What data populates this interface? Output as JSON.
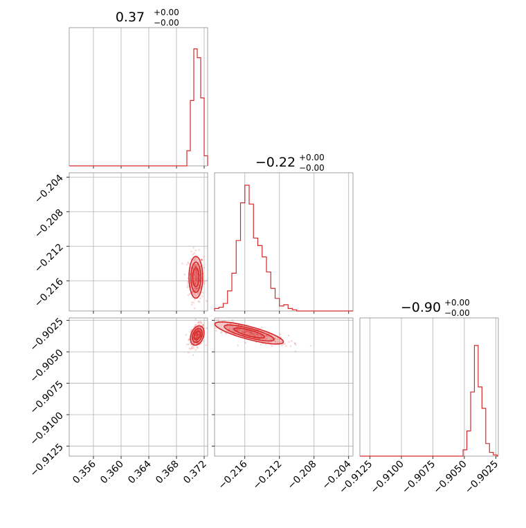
{
  "chart_data": {
    "type": "corner",
    "color": "#d62728",
    "parameters": [
      {
        "title": {
          "value": "0.37",
          "upper": "+0.00",
          "lower": "−0.00"
        }
      },
      {
        "title": {
          "value": "−0.22",
          "upper": "+0.00",
          "lower": "−0.00"
        }
      },
      {
        "title": {
          "value": "−0.90",
          "upper": "+0.00",
          "lower": "−0.00"
        }
      }
    ],
    "x_axes": [
      {
        "range": [
          0.3525,
          0.3725
        ],
        "ticks": [
          0.356,
          0.36,
          0.364,
          0.368,
          0.372
        ],
        "labels": [
          "0.356",
          "0.360",
          "0.364",
          "0.368",
          "0.372"
        ]
      },
      {
        "range": [
          -0.2195,
          -0.2035
        ],
        "ticks": [
          -0.216,
          -0.212,
          -0.208,
          -0.204
        ],
        "labels": [
          "−0.216",
          "−0.212",
          "−0.208",
          "−0.204"
        ]
      },
      {
        "range": [
          -0.9133,
          -0.9023
        ],
        "ticks": [
          -0.9125,
          -0.91,
          -0.9075,
          -0.905,
          -0.9025
        ],
        "labels": [
          "−0.9125",
          "−0.9100",
          "−0.9075",
          "−0.9050",
          "−0.9025"
        ]
      }
    ],
    "y_axes": [
      null,
      {
        "range": [
          -0.2195,
          -0.2035
        ],
        "ticks": [
          -0.216,
          -0.212,
          -0.208,
          -0.204
        ],
        "labels": [
          "−0.216",
          "−0.212",
          "−0.208",
          "−0.204"
        ]
      },
      {
        "range": [
          -0.9133,
          -0.9023
        ],
        "ticks": [
          -0.9125,
          -0.91,
          -0.9075,
          -0.905,
          -0.9025
        ],
        "labels": [
          "−0.9125",
          "−0.9100",
          "−0.9075",
          "−0.9050",
          "−0.9025"
        ]
      }
    ],
    "histograms": [
      {
        "param": 0,
        "bin_edges": [
          0.3695,
          0.37,
          0.3705,
          0.371,
          0.3715,
          0.372,
          0.3725
        ],
        "counts": [
          0.12,
          0.52,
          0.93,
          0.86,
          0.54,
          0.08
        ]
      },
      {
        "param": 1,
        "bin_edges": [
          -0.2195,
          -0.219,
          -0.2185,
          -0.218,
          -0.2175,
          -0.217,
          -0.2165,
          -0.216,
          -0.2155,
          -0.215,
          -0.2145,
          -0.214,
          -0.2135,
          -0.213,
          -0.2125,
          -0.212,
          -0.2115,
          -0.211,
          -0.2105,
          -0.21,
          -0.2095,
          -0.209,
          -0.2085
        ],
        "counts": [
          0.02,
          0.03,
          0.06,
          0.16,
          0.3,
          0.56,
          0.86,
          1.0,
          0.85,
          0.58,
          0.52,
          0.43,
          0.31,
          0.18,
          0.1,
          0.04,
          0.05,
          0.02,
          0.01,
          0.0,
          0.0,
          0.0
        ]
      },
      {
        "param": 2,
        "bin_edges": [
          -0.9051,
          -0.9048,
          -0.9045,
          -0.9042,
          -0.9039,
          -0.9036,
          -0.9033,
          -0.903,
          -0.9027,
          -0.9024
        ],
        "counts": [
          0.05,
          0.2,
          0.51,
          0.88,
          0.55,
          0.38,
          0.1,
          0.03,
          0.01
        ]
      }
    ],
    "pair_plots": [
      {
        "x_param": 0,
        "y_param": 1,
        "center": [
          0.3708,
          -0.2156
        ],
        "sigma": [
          0.00045,
          0.0011
        ],
        "correlation": 0.0
      },
      {
        "x_param": 0,
        "y_param": 2,
        "center": [
          0.371,
          -0.9037
        ],
        "sigma": [
          0.00045,
          0.00035
        ],
        "correlation": 0.3
      },
      {
        "x_param": 1,
        "y_param": 2,
        "center": [
          -0.2155,
          -0.9035
        ],
        "sigma": [
          0.0018,
          0.0004
        ],
        "correlation": -0.8
      }
    ],
    "contour_levels_sigma": [
      1.0,
      1.6,
      2.2
    ],
    "grid": true
  }
}
